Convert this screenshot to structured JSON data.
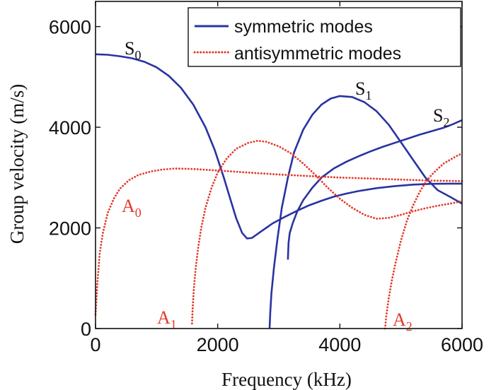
{
  "chart_data": {
    "type": "line",
    "xlabel": "Frequency (kHz)",
    "ylabel": "Group velocity (m/s)",
    "xlim": [
      0,
      6000
    ],
    "ylim": [
      0,
      6500
    ],
    "xticks": [
      "0",
      "2000",
      "4000",
      "6000"
    ],
    "yticks": [
      "0",
      "2000",
      "4000",
      "6000"
    ],
    "grid": false,
    "legend_position": "top-right",
    "legend": [
      "symmetric modes",
      "antisymmetric modes"
    ],
    "colors": {
      "symmetric": "#2a33a0",
      "antisymmetric": "#e23a2a"
    },
    "series": [
      {
        "group": "symmetric",
        "style": "solid",
        "label_main": "S",
        "label_sub": "0",
        "points": [
          [
            0,
            5450
          ],
          [
            200,
            5440
          ],
          [
            400,
            5410
          ],
          [
            600,
            5370
          ],
          [
            800,
            5300
          ],
          [
            1000,
            5190
          ],
          [
            1200,
            5020
          ],
          [
            1400,
            4780
          ],
          [
            1600,
            4450
          ],
          [
            1800,
            4000
          ],
          [
            1950,
            3550
          ],
          [
            2100,
            3000
          ],
          [
            2200,
            2600
          ],
          [
            2300,
            2200
          ],
          [
            2400,
            1900
          ],
          [
            2480,
            1790
          ],
          [
            2560,
            1800
          ],
          [
            2700,
            1920
          ],
          [
            2900,
            2090
          ],
          [
            3100,
            2220
          ],
          [
            3300,
            2340
          ],
          [
            3500,
            2450
          ],
          [
            3700,
            2540
          ],
          [
            3900,
            2620
          ],
          [
            4100,
            2680
          ],
          [
            4300,
            2730
          ],
          [
            4600,
            2790
          ],
          [
            4900,
            2830
          ],
          [
            5200,
            2860
          ],
          [
            5500,
            2875
          ],
          [
            5800,
            2880
          ],
          [
            6000,
            2880
          ]
        ]
      },
      {
        "group": "symmetric",
        "style": "solid",
        "label_main": "S",
        "label_sub": "1",
        "points": [
          [
            2850,
            0
          ],
          [
            2860,
            300
          ],
          [
            2880,
            700
          ],
          [
            2920,
            1200
          ],
          [
            2980,
            1800
          ],
          [
            3050,
            2400
          ],
          [
            3150,
            3000
          ],
          [
            3250,
            3500
          ],
          [
            3400,
            3950
          ],
          [
            3550,
            4250
          ],
          [
            3700,
            4450
          ],
          [
            3850,
            4570
          ],
          [
            4000,
            4620
          ],
          [
            4200,
            4600
          ],
          [
            4400,
            4500
          ],
          [
            4600,
            4320
          ],
          [
            4800,
            4050
          ],
          [
            5000,
            3700
          ],
          [
            5200,
            3350
          ],
          [
            5400,
            3000
          ],
          [
            5600,
            2750
          ],
          [
            5800,
            2620
          ],
          [
            6000,
            2480
          ]
        ]
      },
      {
        "group": "symmetric",
        "style": "solid",
        "label_main": "S",
        "label_sub": "2",
        "points": [
          [
            3150,
            1370
          ],
          [
            3160,
            1700
          ],
          [
            3180,
            1900
          ],
          [
            3230,
            2100
          ],
          [
            3300,
            2320
          ],
          [
            3400,
            2550
          ],
          [
            3550,
            2800
          ],
          [
            3700,
            3000
          ],
          [
            3900,
            3180
          ],
          [
            4100,
            3310
          ],
          [
            4300,
            3420
          ],
          [
            4500,
            3520
          ],
          [
            4700,
            3610
          ],
          [
            4900,
            3690
          ],
          [
            5100,
            3770
          ],
          [
            5300,
            3850
          ],
          [
            5500,
            3920
          ],
          [
            5700,
            3990
          ],
          [
            5850,
            4060
          ],
          [
            6000,
            4140
          ]
        ]
      },
      {
        "group": "antisymmetric",
        "style": "dotted",
        "label_main": "A",
        "label_sub": "0",
        "points": [
          [
            0,
            280
          ],
          [
            30,
            900
          ],
          [
            70,
            1500
          ],
          [
            120,
            1900
          ],
          [
            200,
            2300
          ],
          [
            300,
            2580
          ],
          [
            400,
            2780
          ],
          [
            550,
            2950
          ],
          [
            700,
            3050
          ],
          [
            900,
            3120
          ],
          [
            1100,
            3160
          ],
          [
            1300,
            3180
          ],
          [
            1600,
            3170
          ],
          [
            2000,
            3140
          ],
          [
            2500,
            3100
          ],
          [
            3000,
            3060
          ],
          [
            3500,
            3030
          ],
          [
            4000,
            3000
          ],
          [
            4500,
            2980
          ],
          [
            5000,
            2960
          ],
          [
            5500,
            2940
          ],
          [
            6000,
            2930
          ]
        ]
      },
      {
        "group": "antisymmetric",
        "style": "dotted",
        "label_main": "A",
        "label_sub": "1",
        "points": [
          [
            1580,
            100
          ],
          [
            1590,
            400
          ],
          [
            1610,
            800
          ],
          [
            1640,
            1200
          ],
          [
            1680,
            1600
          ],
          [
            1730,
            2000
          ],
          [
            1800,
            2400
          ],
          [
            1900,
            2800
          ],
          [
            2000,
            3100
          ],
          [
            2150,
            3380
          ],
          [
            2300,
            3570
          ],
          [
            2500,
            3690
          ],
          [
            2650,
            3730
          ],
          [
            2800,
            3710
          ],
          [
            3000,
            3620
          ],
          [
            3200,
            3480
          ],
          [
            3400,
            3280
          ],
          [
            3600,
            3050
          ],
          [
            3800,
            2800
          ],
          [
            4000,
            2580
          ],
          [
            4200,
            2400
          ],
          [
            4400,
            2260
          ],
          [
            4600,
            2180
          ],
          [
            4800,
            2200
          ],
          [
            5000,
            2260
          ],
          [
            5200,
            2330
          ],
          [
            5400,
            2390
          ],
          [
            5600,
            2440
          ],
          [
            5800,
            2480
          ],
          [
            6000,
            2530
          ]
        ]
      },
      {
        "group": "antisymmetric",
        "style": "dotted",
        "label_main": "A",
        "label_sub": "2",
        "points": [
          [
            4740,
            0
          ],
          [
            4760,
            250
          ],
          [
            4800,
            600
          ],
          [
            4850,
            950
          ],
          [
            4920,
            1350
          ],
          [
            5000,
            1750
          ],
          [
            5100,
            2150
          ],
          [
            5200,
            2450
          ],
          [
            5300,
            2700
          ],
          [
            5400,
            2900
          ],
          [
            5500,
            3050
          ],
          [
            5600,
            3170
          ],
          [
            5700,
            3280
          ],
          [
            5800,
            3350
          ],
          [
            5900,
            3420
          ],
          [
            6000,
            3480
          ]
        ]
      }
    ]
  }
}
